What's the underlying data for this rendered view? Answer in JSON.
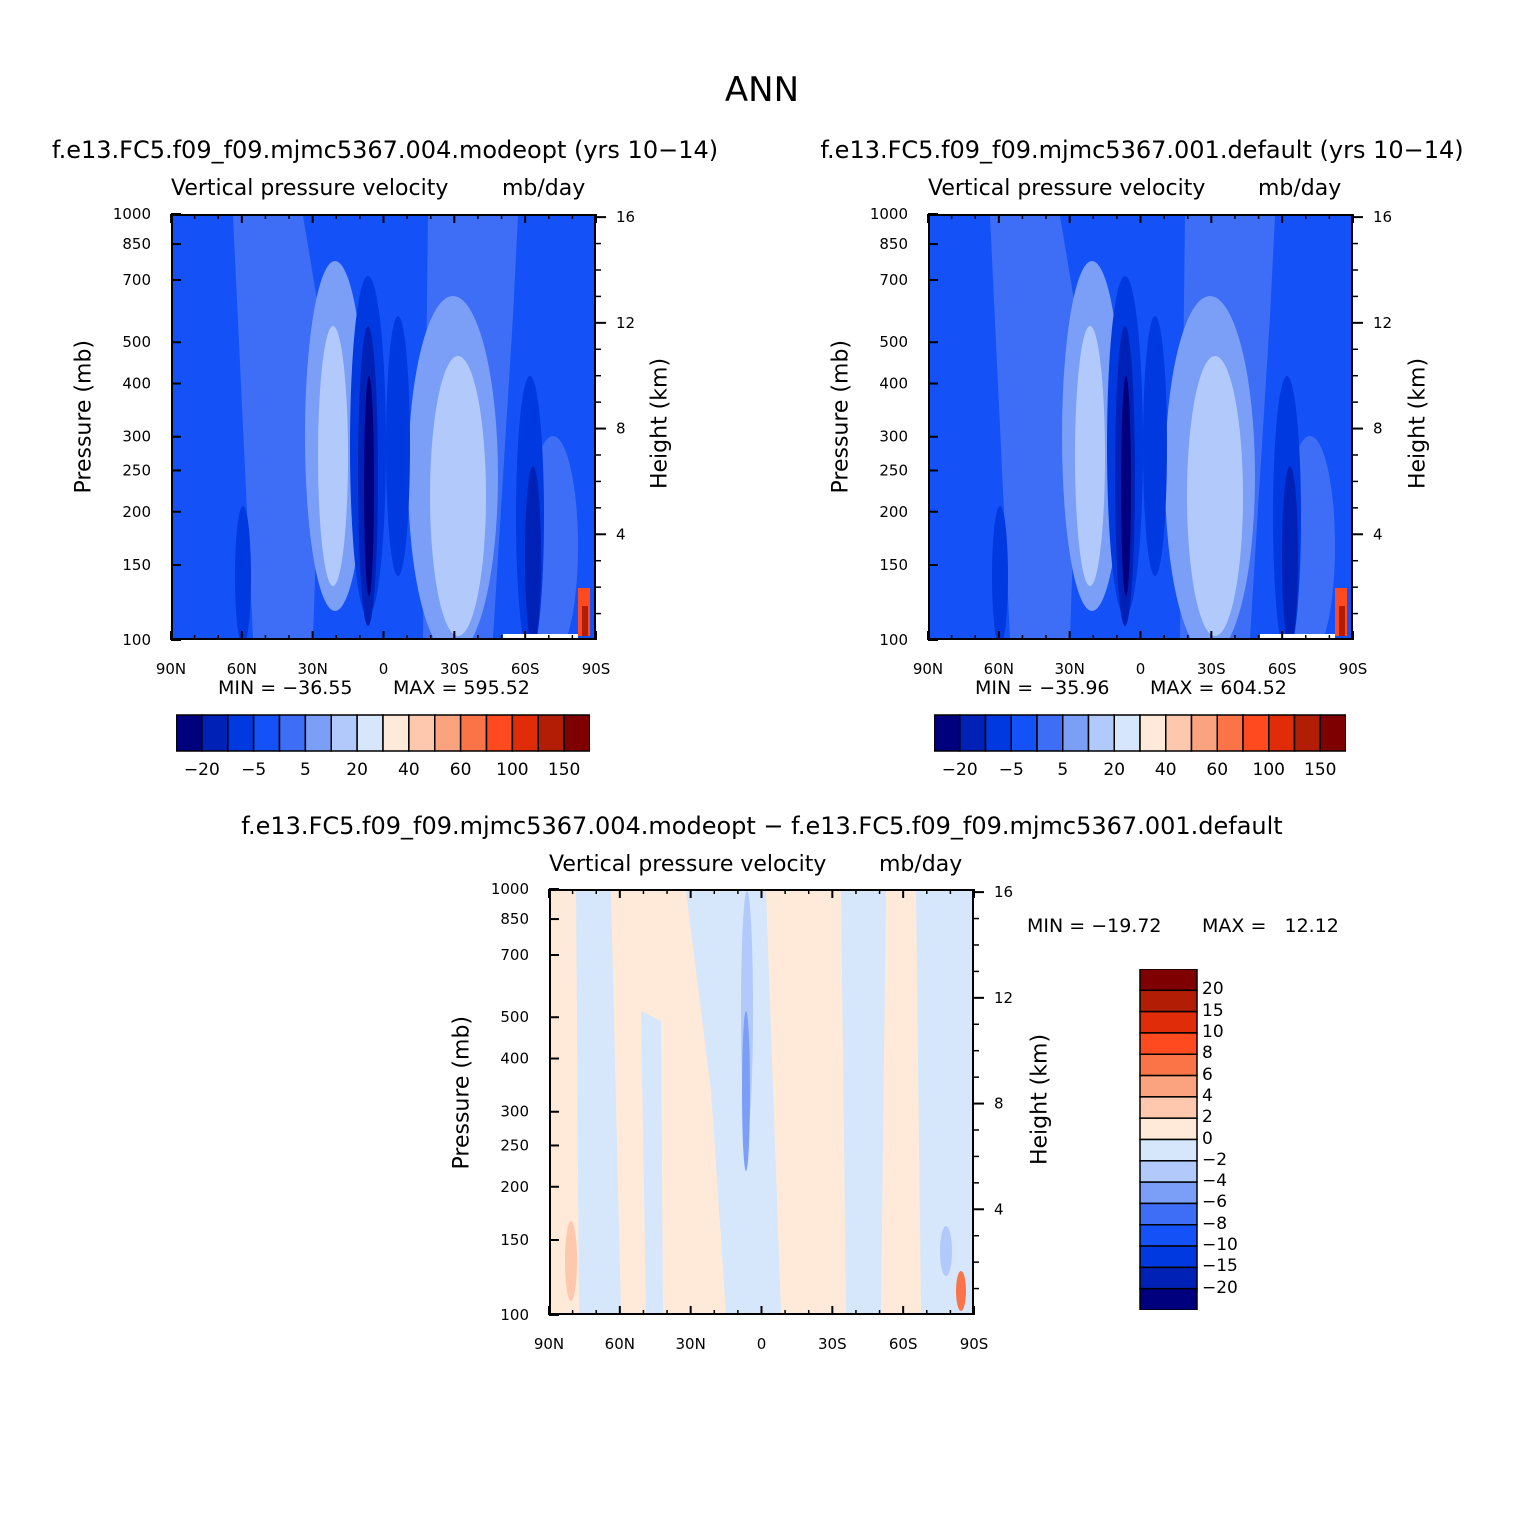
{
  "main_title": "ANN",
  "panels": [
    {
      "title": "f.e13.FC5.f09_f09.mjmc5367.004.modeopt (yrs 10−14)",
      "var_title": "Vertical pressure velocity",
      "units": "mb/day",
      "ylabel": "Pressure (mb)",
      "y2label": "Height (km)",
      "min_label": "MIN = −36.55",
      "max_label": "MAX = 595.52"
    },
    {
      "title": "f.e13.FC5.f09_f09.mjmc5367.001.default (yrs 10−14)",
      "var_title": "Vertical pressure velocity",
      "units": "mb/day",
      "ylabel": "Pressure (mb)",
      "y2label": "Height (km)",
      "min_label": "MIN = −35.96",
      "max_label": "MAX = 604.52"
    },
    {
      "title": "f.e13.FC5.f09_f09.mjmc5367.004.modeopt − f.e13.FC5.f09_f09.mjmc5367.001.default",
      "var_title": "Vertical pressure velocity",
      "units": "mb/day",
      "ylabel": "Pressure (mb)",
      "y2label": "Height (km)",
      "min_label": "MIN = −19.72",
      "max_label": "MAX =   12.12"
    }
  ],
  "x_ticks": [
    "90N",
    "60N",
    "30N",
    "0",
    "30S",
    "60S",
    "90S"
  ],
  "y_ticks": [
    "100",
    "150",
    "200",
    "250",
    "300",
    "400",
    "500",
    "700",
    "850",
    "1000"
  ],
  "y2_ticks": [
    "16",
    "12",
    "8",
    "4"
  ],
  "colorbar_top": {
    "colors": [
      "#00007f",
      "#0021b5",
      "#0039e0",
      "#1452f7",
      "#3d6ef5",
      "#7b9ff7",
      "#b2c9fb",
      "#d6e7fb",
      "#ffead9",
      "#fdc8ae",
      "#fba27e",
      "#fa7448",
      "#ff4a1f",
      "#e02c08",
      "#b11e05",
      "#7f0000"
    ],
    "labels": [
      "−20",
      "−5",
      "5",
      "20",
      "40",
      "60",
      "100",
      "150"
    ]
  },
  "colorbar_diff": {
    "colors": [
      "#7f0000",
      "#b11e05",
      "#e02c08",
      "#ff4a1f",
      "#fa7448",
      "#fba27e",
      "#fdc8ae",
      "#ffead9",
      "#d6e7fb",
      "#b2c9fb",
      "#7b9ff7",
      "#3d6ef5",
      "#1452f7",
      "#0039e0",
      "#0021b5",
      "#00007f"
    ],
    "labels": [
      "20",
      "15",
      "10",
      "8",
      "6",
      "4",
      "2",
      "0",
      "−2",
      "−4",
      "−6",
      "−8",
      "−10",
      "−15",
      "−20"
    ]
  },
  "chart_data": [
    {
      "type": "heatmap",
      "title": "f.e13.FC5.f09_f09.mjmc5367.004.modeopt (yrs 10−14)",
      "subtitle": "Vertical pressure velocity  mb/day",
      "xlabel": "",
      "ylabel": "Pressure (mb)",
      "y2label": "Height (km)",
      "x_range": [
        "90N",
        "90S"
      ],
      "y_range": [
        1000,
        100
      ],
      "y_scale": "log",
      "min": -36.55,
      "max": 595.52
    },
    {
      "type": "heatmap",
      "title": "f.e13.FC5.f09_f09.mjmc5367.001.default (yrs 10−14)",
      "subtitle": "Vertical pressure velocity  mb/day",
      "xlabel": "",
      "ylabel": "Pressure (mb)",
      "y2label": "Height (km)",
      "x_range": [
        "90N",
        "90S"
      ],
      "y_range": [
        1000,
        100
      ],
      "y_scale": "log",
      "min": -35.96,
      "max": 604.52
    },
    {
      "type": "heatmap",
      "title": "f.e13.FC5.f09_f09.mjmc5367.004.modeopt − f.e13.FC5.f09_f09.mjmc5367.001.default",
      "subtitle": "Vertical pressure velocity  mb/day",
      "xlabel": "",
      "ylabel": "Pressure (mb)",
      "y2label": "Height (km)",
      "x_range": [
        "90N",
        "90S"
      ],
      "y_range": [
        1000,
        100
      ],
      "y_scale": "log",
      "min": -19.72,
      "max": 12.12
    }
  ]
}
